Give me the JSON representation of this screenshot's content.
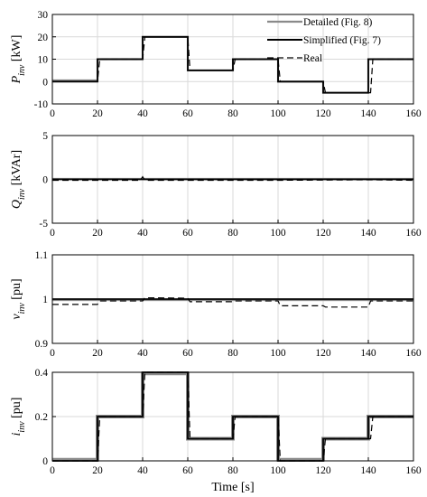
{
  "chart_data": [
    {
      "type": "line",
      "panel": "P_inv",
      "ylabel_sym": "P",
      "ylabel_sub": "inv",
      "ylabel_unit": "[kW]",
      "xlabel": "",
      "xlim": [
        0,
        160
      ],
      "ylim": [
        -10,
        30
      ],
      "x_ticks": [
        "0",
        "20",
        "40",
        "60",
        "80",
        "100",
        "120",
        "140",
        "160"
      ],
      "y_ticks": [
        "-10",
        "0",
        "10",
        "20",
        "30"
      ],
      "y_tick_values": [
        -10,
        0,
        10,
        20,
        30
      ],
      "grid": true,
      "legend": {
        "placement": "top-right",
        "entries": [
          "Detailed (Fig. 8)",
          "Simplified (Fig. 7)",
          "Real"
        ]
      },
      "series": [
        {
          "name": "Detailed (Fig. 8)",
          "color": "#8a8a8a",
          "style": "solid",
          "x": [
            0,
            20,
            20,
            40,
            40,
            60,
            60,
            80,
            80,
            100,
            100,
            120,
            120,
            140,
            140,
            160
          ],
          "y": [
            0.5,
            0.5,
            10,
            10,
            20,
            20,
            5,
            5,
            10,
            10,
            0,
            0,
            -5,
            -5,
            10,
            10
          ]
        },
        {
          "name": "Simplified (Fig. 7)",
          "color": "#000000",
          "style": "solid",
          "x": [
            0,
            20,
            20,
            40,
            40,
            60,
            60,
            80,
            80,
            100,
            100,
            120,
            120,
            140,
            140,
            160
          ],
          "y": [
            0,
            0,
            10,
            10,
            20,
            20,
            5,
            5,
            10,
            10,
            0,
            0,
            -5,
            -5,
            10,
            10
          ]
        },
        {
          "name": "Real",
          "color": "#000000",
          "style": "dashed",
          "x": [
            0,
            20,
            21,
            40,
            41,
            60,
            61,
            80,
            81,
            100,
            101,
            120,
            121,
            140,
            141,
            142,
            160
          ],
          "y": [
            0,
            0,
            10,
            10,
            20,
            20,
            5,
            5,
            10,
            10,
            0,
            0,
            -5,
            -5,
            -5,
            10,
            10
          ]
        }
      ]
    },
    {
      "type": "line",
      "panel": "Q_inv",
      "ylabel_sym": "Q",
      "ylabel_sub": "inv",
      "ylabel_unit": "[kVAr]",
      "xlabel": "",
      "xlim": [
        0,
        160
      ],
      "ylim": [
        -5,
        5
      ],
      "x_ticks": [
        "0",
        "20",
        "40",
        "60",
        "80",
        "100",
        "120",
        "140",
        "160"
      ],
      "y_ticks": [
        "-5",
        "0",
        "5"
      ],
      "y_tick_values": [
        -5,
        0,
        5
      ],
      "grid": true,
      "series": [
        {
          "name": "Detailed (Fig. 8)",
          "color": "#8a8a8a",
          "style": "solid",
          "x": [
            0,
            160
          ],
          "y": [
            0.05,
            0.05
          ]
        },
        {
          "name": "Simplified (Fig. 7)",
          "color": "#000000",
          "style": "solid",
          "x": [
            0,
            160
          ],
          "y": [
            0,
            0
          ]
        },
        {
          "name": "Real",
          "color": "#000000",
          "style": "dashed",
          "x": [
            0,
            39,
            40,
            41,
            60,
            100,
            140,
            160
          ],
          "y": [
            -0.1,
            -0.1,
            0.3,
            -0.1,
            -0.1,
            -0.1,
            -0.05,
            -0.1
          ]
        }
      ]
    },
    {
      "type": "line",
      "panel": "v_inv",
      "ylabel_sym": "v",
      "ylabel_sub": "inv",
      "ylabel_unit": "[pu]",
      "xlabel": "",
      "xlim": [
        0,
        160
      ],
      "ylim": [
        0.9,
        1.1
      ],
      "x_ticks": [
        "0",
        "20",
        "40",
        "60",
        "80",
        "100",
        "120",
        "140",
        "160"
      ],
      "y_ticks": [
        "0.9",
        "1",
        "1.1"
      ],
      "y_tick_values": [
        0.9,
        1.0,
        1.1
      ],
      "grid": true,
      "series": [
        {
          "name": "Detailed (Fig. 8)",
          "color": "#8a8a8a",
          "style": "solid",
          "x": [
            0,
            160
          ],
          "y": [
            0.998,
            0.998
          ]
        },
        {
          "name": "Simplified (Fig. 7)",
          "color": "#000000",
          "style": "solid",
          "x": [
            0,
            160
          ],
          "y": [
            1.0,
            1.0
          ]
        },
        {
          "name": "Real",
          "color": "#000000",
          "style": "dashed",
          "x": [
            0,
            20,
            21,
            40,
            41,
            60,
            61,
            80,
            81,
            100,
            101,
            120,
            121,
            140,
            141,
            160
          ],
          "y": [
            0.988,
            0.988,
            0.996,
            0.996,
            1.003,
            1.002,
            0.994,
            0.994,
            0.996,
            0.996,
            0.985,
            0.985,
            0.982,
            0.982,
            0.996,
            0.996
          ]
        }
      ]
    },
    {
      "type": "line",
      "panel": "i_inv",
      "ylabel_sym": "i",
      "ylabel_sub": "inv",
      "ylabel_unit": "[pu]",
      "xlabel": "Time [s]",
      "xlim": [
        0,
        160
      ],
      "ylim": [
        0,
        0.4
      ],
      "x_ticks": [
        "0",
        "20",
        "40",
        "60",
        "80",
        "100",
        "120",
        "140",
        "160"
      ],
      "y_ticks": [
        "0",
        "0.2",
        "0.4"
      ],
      "y_tick_values": [
        0,
        0.2,
        0.4
      ],
      "grid": true,
      "series": [
        {
          "name": "Detailed (Fig. 8)",
          "color": "#8a8a8a",
          "style": "solid",
          "width": 4,
          "x": [
            0,
            20,
            20,
            40,
            40,
            60,
            60,
            80,
            80,
            100,
            100,
            120,
            120,
            140,
            140,
            160
          ],
          "y": [
            0.005,
            0.005,
            0.2,
            0.2,
            0.395,
            0.395,
            0.1,
            0.1,
            0.2,
            0.2,
            0.005,
            0.005,
            0.1,
            0.1,
            0.2,
            0.2
          ]
        },
        {
          "name": "Simplified (Fig. 7)",
          "color": "#000000",
          "style": "solid",
          "x": [
            0,
            20,
            20,
            40,
            40,
            60,
            60,
            80,
            80,
            100,
            100,
            120,
            120,
            140,
            140,
            160
          ],
          "y": [
            0,
            0,
            0.2,
            0.2,
            0.4,
            0.4,
            0.1,
            0.1,
            0.2,
            0.2,
            0,
            0,
            0.1,
            0.1,
            0.2,
            0.2
          ]
        },
        {
          "name": "Real",
          "color": "#000000",
          "style": "dashed",
          "x": [
            0,
            20,
            21,
            40,
            41,
            60,
            61,
            80,
            81,
            100,
            101,
            120,
            121,
            140,
            141,
            142,
            160
          ],
          "y": [
            0,
            0,
            0.2,
            0.2,
            0.4,
            0.4,
            0.1,
            0.1,
            0.2,
            0.2,
            0,
            0,
            0.1,
            0.1,
            0.1,
            0.2,
            0.2
          ]
        }
      ]
    }
  ]
}
